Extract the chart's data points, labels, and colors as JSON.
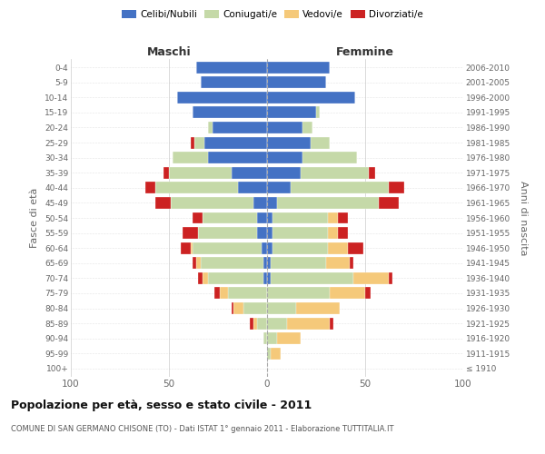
{
  "age_groups": [
    "100+",
    "95-99",
    "90-94",
    "85-89",
    "80-84",
    "75-79",
    "70-74",
    "65-69",
    "60-64",
    "55-59",
    "50-54",
    "45-49",
    "40-44",
    "35-39",
    "30-34",
    "25-29",
    "20-24",
    "15-19",
    "10-14",
    "5-9",
    "0-4"
  ],
  "birth_years": [
    "≤ 1910",
    "1911-1915",
    "1916-1920",
    "1921-1925",
    "1926-1930",
    "1931-1935",
    "1936-1940",
    "1941-1945",
    "1946-1950",
    "1951-1955",
    "1956-1960",
    "1961-1965",
    "1966-1970",
    "1971-1975",
    "1976-1980",
    "1981-1985",
    "1986-1990",
    "1991-1995",
    "1996-2000",
    "2001-2005",
    "2006-2010"
  ],
  "males": {
    "celibi": [
      0,
      0,
      0,
      0,
      0,
      0,
      2,
      2,
      3,
      5,
      5,
      7,
      15,
      18,
      30,
      32,
      28,
      38,
      46,
      34,
      36
    ],
    "coniugati": [
      0,
      0,
      2,
      5,
      12,
      20,
      28,
      32,
      35,
      30,
      28,
      42,
      42,
      32,
      18,
      5,
      2,
      0,
      0,
      0,
      0
    ],
    "vedovi": [
      0,
      0,
      0,
      2,
      5,
      4,
      3,
      2,
      1,
      0,
      0,
      0,
      0,
      0,
      0,
      0,
      0,
      0,
      0,
      0,
      0
    ],
    "divorziati": [
      0,
      0,
      0,
      2,
      1,
      3,
      2,
      2,
      5,
      8,
      5,
      8,
      5,
      3,
      0,
      2,
      0,
      0,
      0,
      0,
      0
    ]
  },
  "females": {
    "nubili": [
      0,
      0,
      0,
      0,
      0,
      0,
      2,
      2,
      3,
      3,
      3,
      5,
      12,
      17,
      18,
      22,
      18,
      25,
      45,
      30,
      32
    ],
    "coniugate": [
      0,
      2,
      5,
      10,
      15,
      32,
      42,
      28,
      28,
      28,
      28,
      52,
      50,
      35,
      28,
      10,
      5,
      2,
      0,
      0,
      0
    ],
    "vedove": [
      0,
      5,
      12,
      22,
      22,
      18,
      18,
      12,
      10,
      5,
      5,
      0,
      0,
      0,
      0,
      0,
      0,
      0,
      0,
      0,
      0
    ],
    "divorziate": [
      0,
      0,
      0,
      2,
      0,
      3,
      2,
      2,
      8,
      5,
      5,
      10,
      8,
      3,
      0,
      0,
      0,
      0,
      0,
      0,
      0
    ]
  },
  "colors": {
    "celibi": "#4472C4",
    "coniugati": "#C5D9A8",
    "vedovi": "#F5C97A",
    "divorziati": "#CC2222"
  },
  "xlim": 100,
  "title1": "Popolazione per età, sesso e stato civile - 2011",
  "title2": "COMUNE DI SAN GERMANO CHISONE (TO) - Dati ISTAT 1° gennaio 2011 - Elaborazione TUTTITALIA.IT",
  "ylabel_left": "Fasce di età",
  "ylabel_right": "Anni di nascita",
  "xlabel_left": "Maschi",
  "xlabel_right": "Femmine",
  "legend": [
    "Celibi/Nubili",
    "Coniugati/e",
    "Vedovi/e",
    "Divorziati/e"
  ]
}
